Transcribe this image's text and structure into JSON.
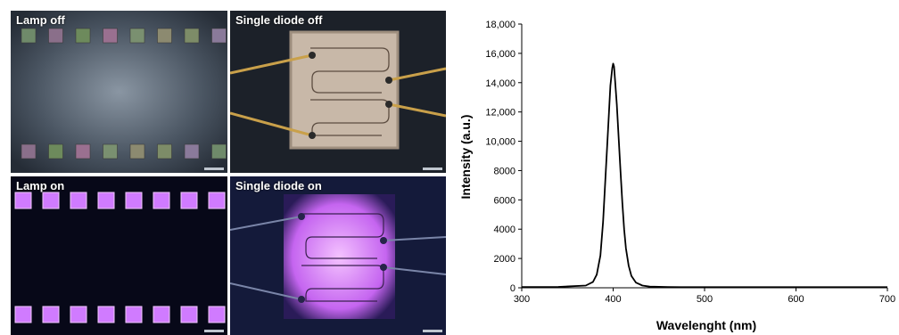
{
  "panels": {
    "lamp_off": "Lamp off",
    "single_off": "Single diode off",
    "lamp_on": "Lamp on",
    "single_on": "Single diode on"
  },
  "colors": {
    "line": "#000000",
    "glow": "#d07bff",
    "dark_bg": "#0a0a24"
  },
  "chart_data": {
    "type": "line",
    "title": "",
    "xlabel": "Wavelenght (nm)",
    "ylabel": "Intensity (a.u.)",
    "xlim": [
      300,
      700
    ],
    "ylim": [
      0,
      18000
    ],
    "xticks": [
      300,
      400,
      500,
      600,
      700
    ],
    "yticks": [
      0,
      2000,
      4000,
      6000,
      8000,
      10000,
      12000,
      14000,
      16000,
      18000
    ],
    "ytick_labels": [
      "0",
      "2000",
      "4000",
      "6000",
      "8000",
      "10,000",
      "12,000",
      "14,000",
      "16,000",
      "18,000"
    ],
    "grid": false,
    "series": [
      {
        "x": [
          300,
          340,
          370,
          378,
          382,
          386,
          389,
          392,
          395,
          397,
          399,
          400,
          401,
          402,
          404,
          406,
          408,
          410,
          412,
          414,
          417,
          420,
          425,
          432,
          440,
          460,
          500,
          600,
          700
        ],
        "y": [
          50,
          60,
          150,
          400,
          900,
          2200,
          4500,
          8000,
          11500,
          13800,
          15000,
          15300,
          15100,
          14200,
          12500,
          10200,
          8000,
          5800,
          4000,
          2700,
          1500,
          800,
          350,
          150,
          80,
          50,
          40,
          40,
          40
        ]
      }
    ]
  }
}
